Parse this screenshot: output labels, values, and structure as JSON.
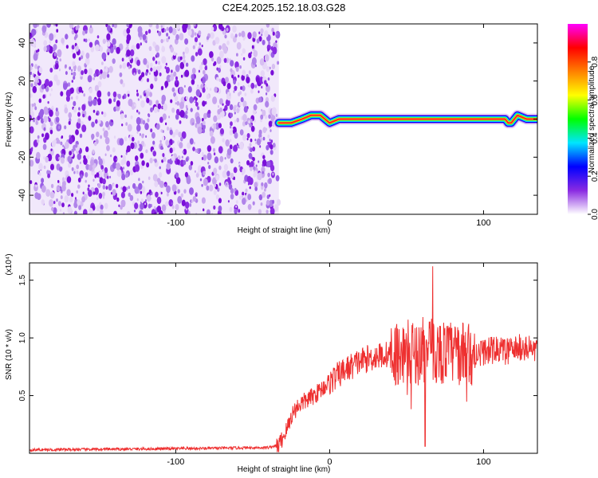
{
  "title": "C2E4.2025.152.18.03.G28",
  "chart_data": [
    {
      "type": "heatmap",
      "xlabel": "Height of straight line (km)",
      "ylabel": "Frequency (Hz)",
      "xlim": [
        -195,
        135
      ],
      "ylim": [
        -50,
        50
      ],
      "xticks": [
        -100,
        0,
        100
      ],
      "yticks": [
        -40,
        -20,
        0,
        20,
        40
      ],
      "noise_region_x": [
        -195,
        -33
      ],
      "signal_line": {
        "x": [
          -33,
          -25,
          -18,
          -12,
          -6,
          0,
          6,
          12,
          20,
          40,
          60,
          80,
          100,
          114,
          116,
          118,
          122,
          128,
          135
        ],
        "y": [
          -2,
          -2,
          0,
          2,
          2,
          -2,
          0,
          0,
          0,
          0,
          0,
          0,
          0,
          0,
          -2,
          -2,
          2,
          0,
          0
        ]
      },
      "colorbar": {
        "label": "Normalized spectral amplitude",
        "range": [
          0.0,
          1.0
        ],
        "ticks": [
          0.0,
          0.2,
          0.4,
          0.6,
          0.8
        ],
        "tick_labels": [
          "0.0",
          "0.2",
          "0.4",
          "0.6",
          "0.8"
        ],
        "colors": [
          "#ffffff",
          "#8a2be2",
          "#0000ff",
          "#00e5ff",
          "#00ff00",
          "#ffff00",
          "#ff8000",
          "#ff0000",
          "#ff00ff"
        ]
      }
    },
    {
      "type": "line",
      "xlabel": "Height of straight line (km)",
      "ylabel": "SNR (10 * v/v)",
      "scale_label": "(x10⁴)",
      "xlim": [
        -195,
        135
      ],
      "ylim": [
        0,
        1.65
      ],
      "xticks": [
        -100,
        0,
        100
      ],
      "yticks": [
        0.5,
        1.0,
        1.5
      ],
      "ytick_labels": [
        "0.5",
        "1.0",
        "1.5"
      ],
      "series": [
        {
          "color": "#ee3030",
          "envelope": {
            "x": [
              -195,
              -100,
              -40,
              -33,
              -28,
              -24,
              -20,
              -10,
              0,
              10,
              20,
              30,
              40,
              50,
              60,
              70,
              80,
              90,
              100,
              110,
              115,
              120,
              125,
              130,
              135
            ],
            "y": [
              0.03,
              0.04,
              0.05,
              0.07,
              0.2,
              0.35,
              0.42,
              0.5,
              0.62,
              0.72,
              0.8,
              0.84,
              0.86,
              0.88,
              0.88,
              0.88,
              0.87,
              0.86,
              0.88,
              0.9,
              0.88,
              0.9,
              0.92,
              0.9,
              0.9
            ]
          },
          "peak": {
            "x": 67,
            "y": 1.62
          },
          "min_dip": {
            "x": 62,
            "y": 0.06
          }
        }
      ]
    }
  ]
}
